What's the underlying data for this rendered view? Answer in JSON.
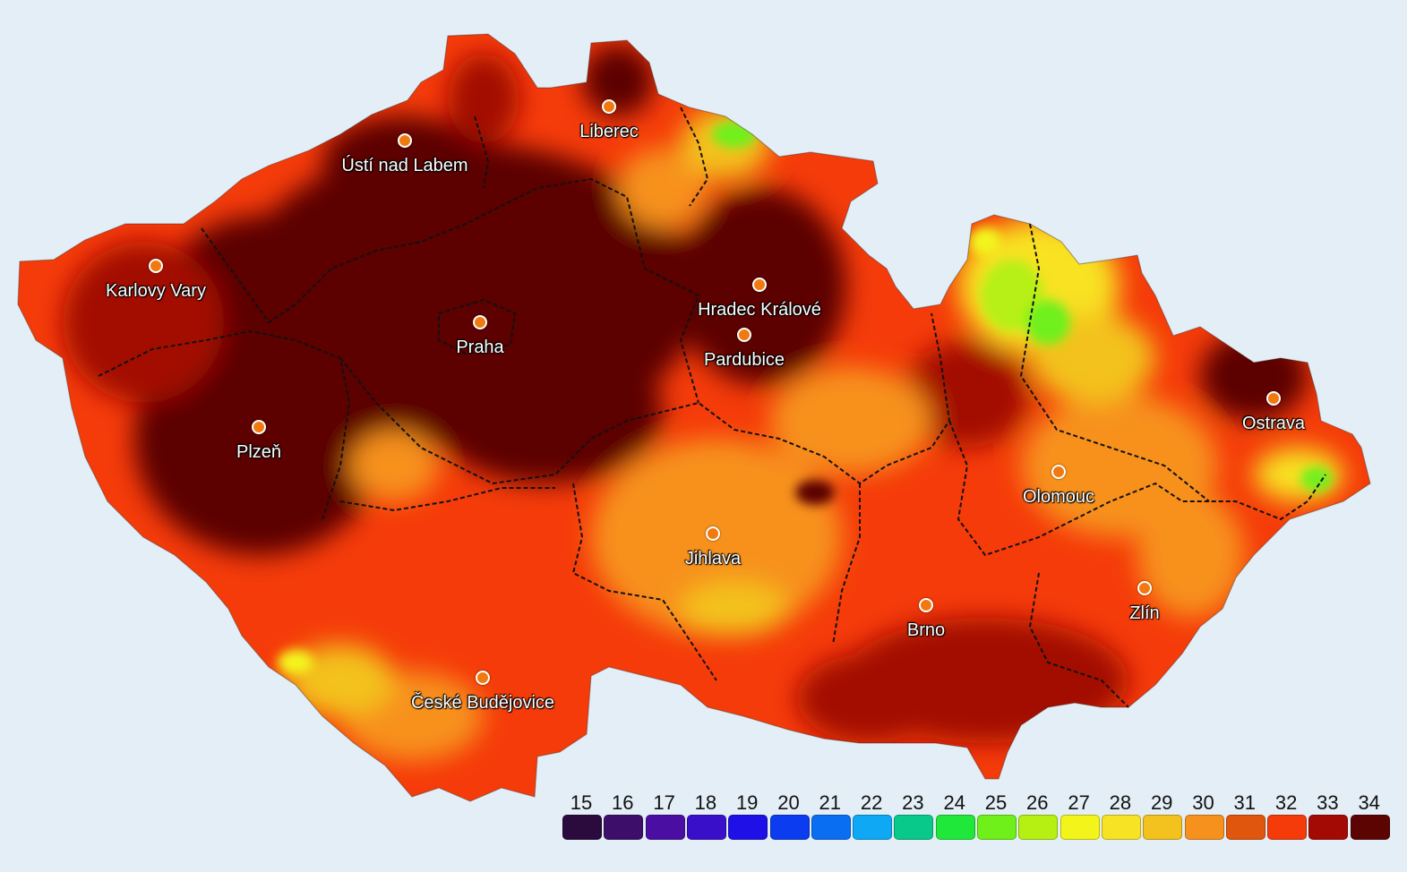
{
  "cities": [
    {
      "name": "Liberec",
      "id": "liberec"
    },
    {
      "name": "Ústí nad Labem",
      "id": "usti-nad-labem"
    },
    {
      "name": "Karlovy Vary",
      "id": "karlovy-vary"
    },
    {
      "name": "Praha",
      "id": "praha"
    },
    {
      "name": "Hradec Králové",
      "id": "hradec-kralove"
    },
    {
      "name": "Pardubice",
      "id": "pardubice"
    },
    {
      "name": "Plzeň",
      "id": "plzen"
    },
    {
      "name": "Ostrava",
      "id": "ostrava"
    },
    {
      "name": "Olomouc",
      "id": "olomouc"
    },
    {
      "name": "Jihlava",
      "id": "jihlava"
    },
    {
      "name": "Brno",
      "id": "brno"
    },
    {
      "name": "Zlín",
      "id": "zlin"
    },
    {
      "name": "České Budějovice",
      "id": "ceske-budejovice"
    }
  ],
  "legend": {
    "values": [
      "15",
      "16",
      "17",
      "18",
      "19",
      "20",
      "21",
      "22",
      "23",
      "24",
      "25",
      "26",
      "27",
      "28",
      "29",
      "30",
      "31",
      "32",
      "33",
      "34"
    ],
    "colors": [
      "#2b0a3d",
      "#3d0f6b",
      "#4a0ea3",
      "#3a0fc9",
      "#1e10e6",
      "#0b3cf0",
      "#0a6ef2",
      "#0ea8f5",
      "#08c98a",
      "#1fe83a",
      "#6ff01a",
      "#b6f012",
      "#f3f51a",
      "#f8e224",
      "#f3c21e",
      "#f7911e",
      "#e0560d",
      "#f53b0a",
      "#a30a04",
      "#5c0402"
    ]
  },
  "colors": {
    "background": "#e3eef6",
    "hottest": "#5c0402",
    "hot": "#a30a04",
    "warm": "#f53b0a",
    "mild": "#f7911e",
    "cool": "#f3f51a",
    "cold": "#1fe83a",
    "border_line": "#111111",
    "city_marker": "#f07a10"
  }
}
